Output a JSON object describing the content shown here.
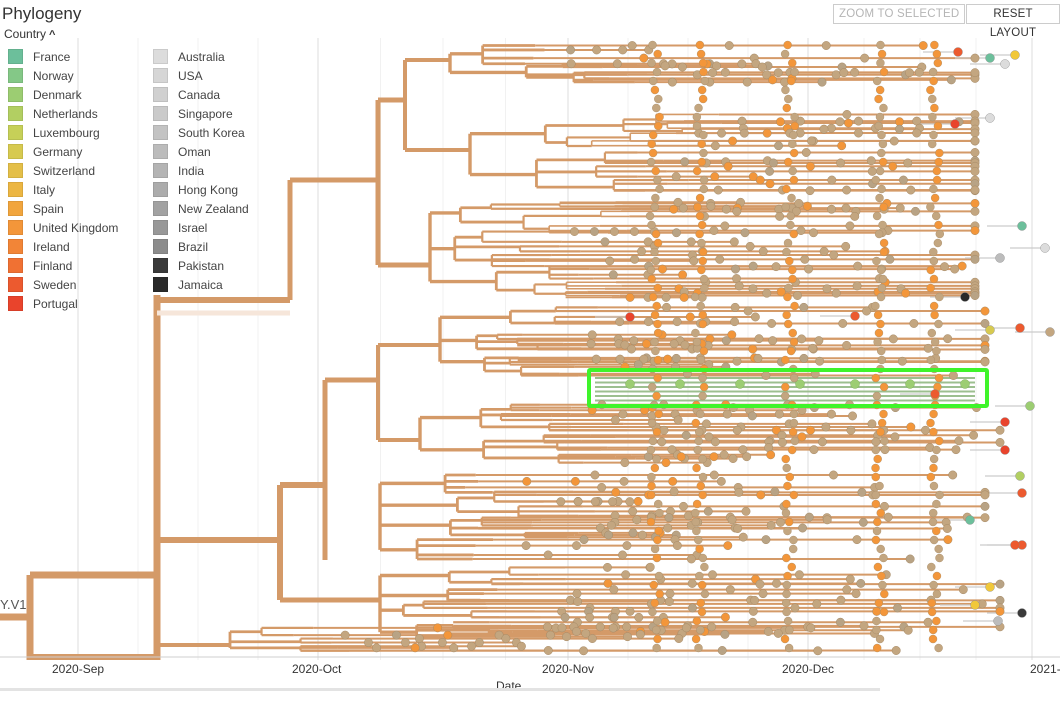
{
  "panel": {
    "title": "Phylogeny",
    "zoom_button": "ZOOM TO SELECTED",
    "reset_button": "RESET LAYOUT",
    "legend_toggle": "Country"
  },
  "legend": {
    "left_column": [
      {
        "label": "France",
        "color": "#6cbf9b"
      },
      {
        "label": "Norway",
        "color": "#84c887"
      },
      {
        "label": "Denmark",
        "color": "#9ccd72"
      },
      {
        "label": "Netherlands",
        "color": "#b2cf62"
      },
      {
        "label": "Luxembourg",
        "color": "#c6d058"
      },
      {
        "label": "Germany",
        "color": "#d7ca50"
      },
      {
        "label": "Switzerland",
        "color": "#e4bf48"
      },
      {
        "label": "Italy",
        "color": "#ecb642"
      },
      {
        "label": "Spain",
        "color": "#f1a53d"
      },
      {
        "label": "United Kingdom",
        "color": "#f3963a"
      },
      {
        "label": "Ireland",
        "color": "#f28537"
      },
      {
        "label": "Finland",
        "color": "#f07133"
      },
      {
        "label": "Sweden",
        "color": "#ec5a2f"
      },
      {
        "label": "Portugal",
        "color": "#e9442c"
      }
    ],
    "right_column": [
      {
        "label": "Australia",
        "color": "#dcdcdc"
      },
      {
        "label": "USA",
        "color": "#d6d6d6"
      },
      {
        "label": "Canada",
        "color": "#d0d0d0"
      },
      {
        "label": "Singapore",
        "color": "#cacaca"
      },
      {
        "label": "South Korea",
        "color": "#c3c3c3"
      },
      {
        "label": "Oman",
        "color": "#bcbcbc"
      },
      {
        "label": "India",
        "color": "#b4b4b4"
      },
      {
        "label": "Hong Kong",
        "color": "#acacac"
      },
      {
        "label": "New Zealand",
        "color": "#a2a2a2"
      },
      {
        "label": "Israel",
        "color": "#989898"
      },
      {
        "label": "Brazil",
        "color": "#8c8c8c"
      },
      {
        "label": "Pakistan",
        "color": "#3a3a3a"
      },
      {
        "label": "Jamaica",
        "color": "#2a2a2a"
      }
    ]
  },
  "tree": {
    "branch_color": "#d49a68",
    "tip_color": "#c3a680",
    "highlight_branch_color": "#9cbf8f",
    "selection_color": "#3ff42a",
    "clade_label": "Y.V1"
  },
  "axis": {
    "title": "Date",
    "ticks": [
      "2020-Sep",
      "2020-Oct",
      "2020-Nov",
      "2020-Dec",
      "2021-"
    ]
  }
}
